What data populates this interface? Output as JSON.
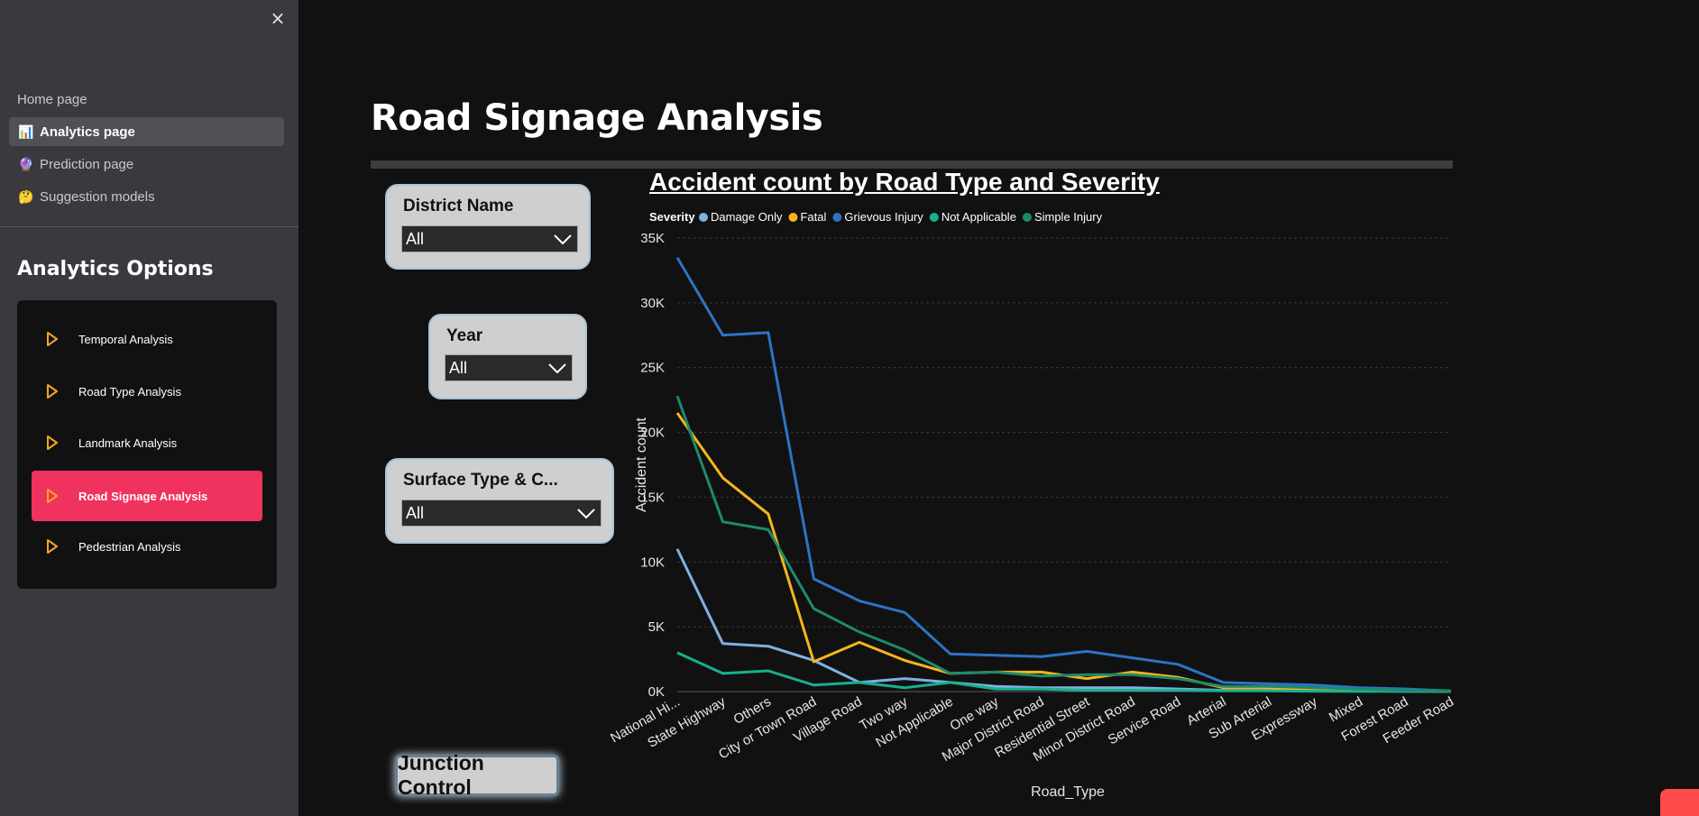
{
  "sidebar": {
    "close_label": "×",
    "nav": [
      {
        "label": "Home page",
        "icon": "",
        "active": false
      },
      {
        "label": "Analytics page",
        "icon": "📊",
        "active": true
      },
      {
        "label": "Prediction page",
        "icon": "🔮",
        "active": false
      },
      {
        "label": "Suggestion models",
        "icon": "🤔",
        "active": false
      }
    ],
    "options_title": "Analytics Options",
    "options": [
      {
        "label": "Temporal Analysis"
      },
      {
        "label": "Road Type Analysis"
      },
      {
        "label": "Landmark Analysis"
      },
      {
        "label": "Road Signage Analysis"
      },
      {
        "label": "Pedestrian Analysis"
      }
    ],
    "accent_color": "#f0325f",
    "icon_color": "#f5a623"
  },
  "main": {
    "title": "Road Signage Analysis",
    "filters": {
      "district": {
        "label": "District Name",
        "value": "All"
      },
      "year": {
        "label": "Year",
        "value": "All"
      },
      "surface": {
        "label": "Surface Type & C...",
        "value": "All"
      }
    },
    "junction_button": "Junction Control"
  },
  "chart_data": {
    "type": "line",
    "title": "Accident count by Road Type and Severity",
    "xlabel": "Road_Type",
    "ylabel": "Accident count",
    "ylim": [
      0,
      35000
    ],
    "yticks": [
      "0K",
      "5K",
      "10K",
      "15K",
      "20K",
      "25K",
      "30K",
      "35K"
    ],
    "legend_title": "Severity",
    "legend_position": "top-left",
    "grid": true,
    "categories": [
      "National Hi...",
      "State Highway",
      "Others",
      "City or Town Road",
      "Village Road",
      "Two way",
      "Not Applicable",
      "One way",
      "Major District Road",
      "Residential Street",
      "Minor District Road",
      "Service Road",
      "Arterial",
      "Sub Arterial",
      "Expressway",
      "Mixed",
      "Forest Road",
      "Feeder Road"
    ],
    "series": [
      {
        "name": "Damage Only",
        "color": "#7fb1e3",
        "values": [
          11000,
          3700,
          3500,
          2400,
          700,
          1000,
          700,
          400,
          300,
          300,
          300,
          200,
          100,
          100,
          100,
          50,
          30,
          20
        ]
      },
      {
        "name": "Fatal",
        "color": "#f5b61a",
        "values": [
          21500,
          16500,
          13700,
          2300,
          3800,
          2400,
          1400,
          1500,
          1500,
          1000,
          1500,
          1100,
          300,
          300,
          100,
          50,
          30,
          20
        ]
      },
      {
        "name": "Grievous Injury",
        "color": "#2c74c4",
        "values": [
          33500,
          27500,
          27700,
          8700,
          7000,
          6100,
          2900,
          2800,
          2700,
          3100,
          2600,
          2100,
          700,
          600,
          500,
          300,
          200,
          50
        ]
      },
      {
        "name": "Not Applicable",
        "color": "#18b08f",
        "values": [
          3000,
          1400,
          1600,
          500,
          700,
          300,
          700,
          200,
          200,
          100,
          100,
          100,
          50,
          50,
          30,
          20,
          10,
          10
        ]
      },
      {
        "name": "Simple Injury",
        "color": "#1e8a6c",
        "values": [
          22800,
          13100,
          12500,
          6400,
          4600,
          3200,
          1400,
          1500,
          1200,
          1300,
          1300,
          1000,
          400,
          400,
          300,
          200,
          100,
          50
        ]
      }
    ]
  }
}
